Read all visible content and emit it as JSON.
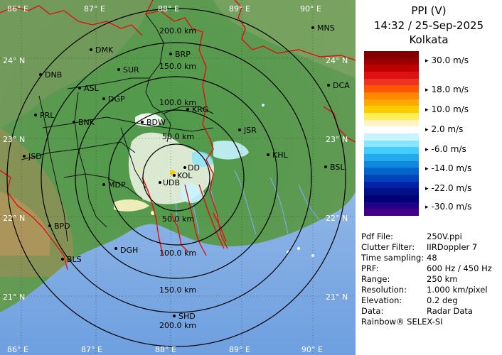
{
  "panel": {
    "title_line1": "PPI (V)",
    "title_line2": "14:32 / 25-Sep-2025",
    "title_line3": "Kolkata",
    "legend": [
      {
        "label": "30.0 m/s"
      },
      {
        "label": "18.0 m/s"
      },
      {
        "label": "10.0 m/s"
      },
      {
        "label": "2.0 m/s"
      },
      {
        "label": "-6.0 m/s"
      },
      {
        "label": "-14.0 m/s"
      },
      {
        "label": "-22.0 m/s"
      },
      {
        "label": "-30.0 m/s"
      }
    ],
    "legend_colors": [
      "#800000",
      "#990000",
      "#c00000",
      "#dd1111",
      "#ee3322",
      "#ff5500",
      "#ff8800",
      "#ffaa00",
      "#ffcc00",
      "#ffee55",
      "#fff5c8",
      "#ffffff",
      "#c8f4ff",
      "#88e4ff",
      "#44ccff",
      "#22aaee",
      "#1188dd",
      "#0066cc",
      "#0044bb",
      "#0022aa",
      "#001188",
      "#000077",
      "#22008a",
      "#440088"
    ],
    "info": [
      {
        "key": "Pdf File:",
        "value": "250V.ppi"
      },
      {
        "key": "Clutter Filter:",
        "value": "IIRDoppler 7"
      },
      {
        "key": "Time sampling:",
        "value": "48"
      },
      {
        "key": "PRF:",
        "value": "600 Hz / 450 Hz"
      },
      {
        "key": "Range:",
        "value": "250 km"
      },
      {
        "key": "Resolution:",
        "value": "1.000 km/pixel"
      },
      {
        "key": "Elevation:",
        "value": "0.2 deg"
      },
      {
        "key": "Data:",
        "value": "Radar Data"
      }
    ],
    "footer": "Rainbow® SELEX-SI"
  },
  "map": {
    "lon_labels": [
      "86° E",
      "87° E",
      "88° E",
      "89° E",
      "90° E"
    ],
    "lat_labels": [
      "24° N",
      "23° N",
      "22° N",
      "21° N"
    ],
    "ring_labels": [
      "50.0 km",
      "100.0 km",
      "150.0 km",
      "200.0 km"
    ],
    "cities": [
      {
        "name": "MNS"
      },
      {
        "name": "DMK"
      },
      {
        "name": "BRP"
      },
      {
        "name": "DNB"
      },
      {
        "name": "SUR"
      },
      {
        "name": "ASL"
      },
      {
        "name": "DGP"
      },
      {
        "name": "DCA"
      },
      {
        "name": "PRL"
      },
      {
        "name": "BNK"
      },
      {
        "name": "KRG"
      },
      {
        "name": "BDW"
      },
      {
        "name": "JSR"
      },
      {
        "name": "KHL"
      },
      {
        "name": "JSD"
      },
      {
        "name": "DD"
      },
      {
        "name": "KOL"
      },
      {
        "name": "BSL"
      },
      {
        "name": "MDP"
      },
      {
        "name": "UDB"
      },
      {
        "name": "BPD"
      },
      {
        "name": "DGH"
      },
      {
        "name": "BLS"
      },
      {
        "name": "SHD"
      }
    ]
  }
}
